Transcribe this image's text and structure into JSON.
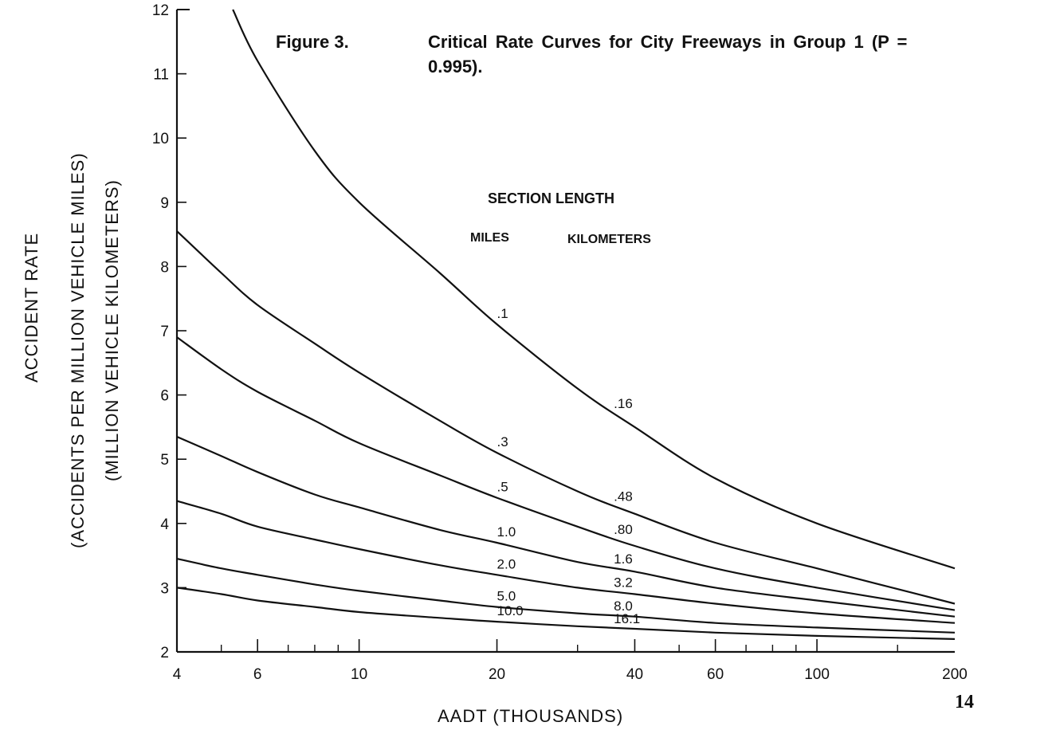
{
  "figure": {
    "number": "Figure 3.",
    "caption_line1": "Critical Rate Curves for City Freeways in Group 1 (P =",
    "caption_line2": "0.995)."
  },
  "page_number": "14",
  "chart_data": {
    "type": "line",
    "title": "Critical Rate Curves for City Freeways in Group 1 (P = 0.995).",
    "xlabel": "AADT (THOUSANDS)",
    "ylabel_lines": [
      "ACCIDENT RATE",
      "(ACCIDENTS PER MILLION VEHICLE MILES)",
      "(MILLION VEHICLE KILOMETERS)"
    ],
    "x_scale": "log",
    "xlim": [
      4,
      200
    ],
    "ylim": [
      2,
      12
    ],
    "x_tick_labels": [
      4,
      6,
      10,
      20,
      40,
      60,
      100,
      200
    ],
    "x_minor_ticks": [
      5,
      7,
      8,
      9,
      30,
      50,
      70,
      80,
      90,
      150
    ],
    "y_tick_labels": [
      2,
      3,
      4,
      5,
      6,
      7,
      8,
      9,
      10,
      11,
      12
    ],
    "grid": false,
    "legend": {
      "title": "SECTION LENGTH",
      "col1": "MILES",
      "col2": "KILOMETERS"
    },
    "series": [
      {
        "name": ".1",
        "km": ".16",
        "x": [
          5.3,
          6,
          8,
          10,
          15,
          20,
          30,
          40,
          60,
          100,
          200
        ],
        "y": [
          12.0,
          11.2,
          9.8,
          9.0,
          7.9,
          7.1,
          6.1,
          5.5,
          4.7,
          4.0,
          3.3
        ]
      },
      {
        "name": ".3",
        "km": ".48",
        "x": [
          4,
          5,
          6,
          8,
          10,
          15,
          20,
          30,
          40,
          60,
          100,
          200
        ],
        "y": [
          8.55,
          7.9,
          7.4,
          6.8,
          6.35,
          5.6,
          5.1,
          4.5,
          4.15,
          3.7,
          3.3,
          2.75
        ]
      },
      {
        "name": ".5",
        "km": ".80",
        "x": [
          4,
          5,
          6,
          8,
          10,
          15,
          20,
          30,
          40,
          60,
          100,
          200
        ],
        "y": [
          6.9,
          6.4,
          6.05,
          5.6,
          5.25,
          4.75,
          4.4,
          3.95,
          3.65,
          3.3,
          3.0,
          2.65
        ]
      },
      {
        "name": "1.0",
        "km": "1.6",
        "x": [
          4,
          5,
          6,
          8,
          10,
          15,
          20,
          30,
          40,
          60,
          100,
          200
        ],
        "y": [
          5.35,
          5.05,
          4.8,
          4.45,
          4.25,
          3.9,
          3.7,
          3.4,
          3.25,
          3.0,
          2.8,
          2.55
        ]
      },
      {
        "name": "2.0",
        "km": "3.2",
        "x": [
          4,
          5,
          6,
          8,
          10,
          15,
          20,
          30,
          40,
          60,
          100,
          200
        ],
        "y": [
          4.35,
          4.15,
          3.95,
          3.75,
          3.6,
          3.35,
          3.2,
          3.0,
          2.9,
          2.75,
          2.6,
          2.45
        ]
      },
      {
        "name": "5.0",
        "km": "8.0",
        "x": [
          4,
          5,
          6,
          8,
          10,
          15,
          20,
          30,
          40,
          60,
          100,
          200
        ],
        "y": [
          3.45,
          3.3,
          3.2,
          3.05,
          2.95,
          2.8,
          2.7,
          2.6,
          2.55,
          2.45,
          2.38,
          2.3
        ]
      },
      {
        "name": "10.0",
        "km": "16.1",
        "x": [
          4,
          5,
          6,
          8,
          10,
          15,
          20,
          30,
          40,
          60,
          100,
          200
        ],
        "y": [
          3.0,
          2.9,
          2.8,
          2.7,
          2.62,
          2.53,
          2.47,
          2.4,
          2.36,
          2.3,
          2.25,
          2.2
        ]
      }
    ]
  }
}
